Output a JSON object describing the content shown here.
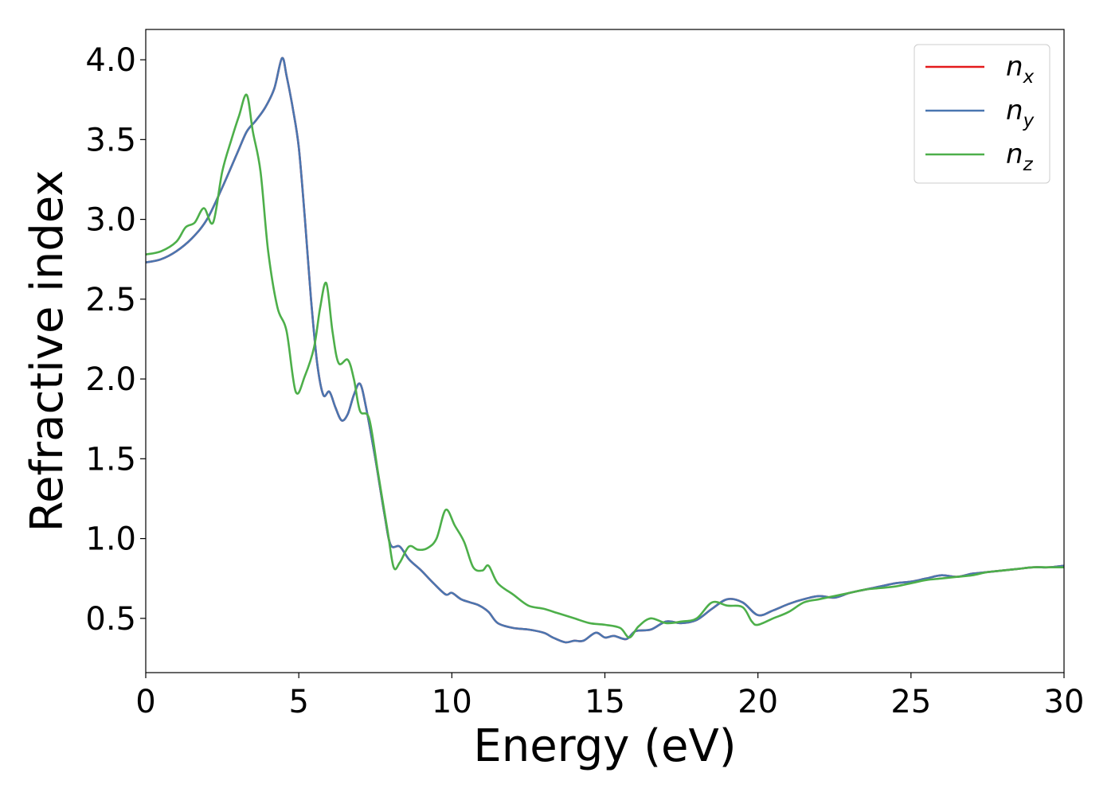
{
  "chart_data": {
    "type": "line",
    "title": "",
    "xlabel": "Energy (eV)",
    "ylabel": "Refractive index",
    "xlim": [
      0,
      30
    ],
    "ylim": [
      0.16,
      4.19
    ],
    "xticks": [
      0,
      5,
      10,
      15,
      20,
      25,
      30
    ],
    "yticks": [
      0.5,
      1.0,
      1.5,
      2.0,
      2.5,
      3.0,
      3.5,
      4.0
    ],
    "xtick_labels": [
      "0",
      "5",
      "10",
      "15",
      "20",
      "25",
      "30"
    ],
    "ytick_labels": [
      "0.5",
      "1.0",
      "1.5",
      "2.0",
      "2.5",
      "3.0",
      "3.5",
      "4.0"
    ],
    "grid": false,
    "legend_position": "top-right",
    "series": [
      {
        "name": "n_x",
        "label_base": "n",
        "label_sub": "x",
        "color": "#e41a1c",
        "x": [
          0,
          0.5,
          1.0,
          1.5,
          2.0,
          2.5,
          3.0,
          3.3,
          3.6,
          3.9,
          4.2,
          4.45,
          4.6,
          4.8,
          5.0,
          5.2,
          5.4,
          5.6,
          5.8,
          6.0,
          6.2,
          6.4,
          6.6,
          6.8,
          7.0,
          7.2,
          7.5,
          7.8,
          8.0,
          8.3,
          8.6,
          9.0,
          9.4,
          9.8,
          10.0,
          10.3,
          10.6,
          10.9,
          11.2,
          11.5,
          12.0,
          12.5,
          13.0,
          13.3,
          13.7,
          14.0,
          14.3,
          14.7,
          15.0,
          15.3,
          15.7,
          16.0,
          16.5,
          17.0,
          17.5,
          18.0,
          18.5,
          19.0,
          19.5,
          20.0,
          20.5,
          21.0,
          21.5,
          22.0,
          22.5,
          23.0,
          23.5,
          24.0,
          24.5,
          25.0,
          25.5,
          26.0,
          26.5,
          27.0,
          27.5,
          28.0,
          28.5,
          29.0,
          29.5,
          30.0
        ],
        "y": [
          2.73,
          2.75,
          2.8,
          2.88,
          3.0,
          3.2,
          3.42,
          3.55,
          3.62,
          3.7,
          3.82,
          4.01,
          3.9,
          3.7,
          3.45,
          3.0,
          2.5,
          2.1,
          1.9,
          1.92,
          1.82,
          1.74,
          1.78,
          1.9,
          1.97,
          1.82,
          1.5,
          1.15,
          0.96,
          0.95,
          0.87,
          0.8,
          0.72,
          0.65,
          0.66,
          0.62,
          0.6,
          0.58,
          0.54,
          0.47,
          0.44,
          0.43,
          0.41,
          0.38,
          0.35,
          0.36,
          0.36,
          0.41,
          0.38,
          0.39,
          0.37,
          0.42,
          0.43,
          0.48,
          0.47,
          0.49,
          0.56,
          0.62,
          0.6,
          0.52,
          0.55,
          0.59,
          0.62,
          0.64,
          0.63,
          0.66,
          0.68,
          0.7,
          0.72,
          0.73,
          0.75,
          0.77,
          0.76,
          0.78,
          0.79,
          0.8,
          0.81,
          0.82,
          0.82,
          0.83
        ]
      },
      {
        "name": "n_y",
        "label_base": "n",
        "label_sub": "y",
        "color": "#4a76b0",
        "x": [
          0,
          0.5,
          1.0,
          1.5,
          2.0,
          2.5,
          3.0,
          3.3,
          3.6,
          3.9,
          4.2,
          4.45,
          4.6,
          4.8,
          5.0,
          5.2,
          5.4,
          5.6,
          5.8,
          6.0,
          6.2,
          6.4,
          6.6,
          6.8,
          7.0,
          7.2,
          7.5,
          7.8,
          8.0,
          8.3,
          8.6,
          9.0,
          9.4,
          9.8,
          10.0,
          10.3,
          10.6,
          10.9,
          11.2,
          11.5,
          12.0,
          12.5,
          13.0,
          13.3,
          13.7,
          14.0,
          14.3,
          14.7,
          15.0,
          15.3,
          15.7,
          16.0,
          16.5,
          17.0,
          17.5,
          18.0,
          18.5,
          19.0,
          19.5,
          20.0,
          20.5,
          21.0,
          21.5,
          22.0,
          22.5,
          23.0,
          23.5,
          24.0,
          24.5,
          25.0,
          25.5,
          26.0,
          26.5,
          27.0,
          27.5,
          28.0,
          28.5,
          29.0,
          29.5,
          30.0
        ],
        "y": [
          2.73,
          2.75,
          2.8,
          2.88,
          3.0,
          3.2,
          3.42,
          3.55,
          3.62,
          3.7,
          3.82,
          4.01,
          3.9,
          3.7,
          3.45,
          3.0,
          2.5,
          2.1,
          1.9,
          1.92,
          1.82,
          1.74,
          1.78,
          1.9,
          1.97,
          1.82,
          1.5,
          1.15,
          0.96,
          0.95,
          0.87,
          0.8,
          0.72,
          0.65,
          0.66,
          0.62,
          0.6,
          0.58,
          0.54,
          0.47,
          0.44,
          0.43,
          0.41,
          0.38,
          0.35,
          0.36,
          0.36,
          0.41,
          0.38,
          0.39,
          0.37,
          0.42,
          0.43,
          0.48,
          0.47,
          0.49,
          0.56,
          0.62,
          0.6,
          0.52,
          0.55,
          0.59,
          0.62,
          0.64,
          0.63,
          0.66,
          0.68,
          0.7,
          0.72,
          0.73,
          0.75,
          0.77,
          0.76,
          0.78,
          0.79,
          0.8,
          0.81,
          0.82,
          0.82,
          0.83
        ]
      },
      {
        "name": "n_z",
        "label_base": "n",
        "label_sub": "z",
        "color": "#4daf4a",
        "x": [
          0,
          0.5,
          1.0,
          1.3,
          1.6,
          1.9,
          2.2,
          2.5,
          2.8,
          3.05,
          3.3,
          3.5,
          3.75,
          4.0,
          4.3,
          4.6,
          4.9,
          5.2,
          5.5,
          5.7,
          5.9,
          6.1,
          6.3,
          6.6,
          6.8,
          7.0,
          7.3,
          7.6,
          7.9,
          8.1,
          8.3,
          8.6,
          8.9,
          9.2,
          9.5,
          9.8,
          10.1,
          10.4,
          10.7,
          11.0,
          11.2,
          11.5,
          12.0,
          12.5,
          13.0,
          13.5,
          14.0,
          14.5,
          15.0,
          15.5,
          15.8,
          16.1,
          16.5,
          17.0,
          17.5,
          18.0,
          18.5,
          19.0,
          19.5,
          19.8,
          20.0,
          20.5,
          21.0,
          21.5,
          22.0,
          22.5,
          23.0,
          23.5,
          24.0,
          24.5,
          25.0,
          25.5,
          26.0,
          26.5,
          27.0,
          27.5,
          28.0,
          28.5,
          29.0,
          29.5,
          30.0
        ],
        "y": [
          2.78,
          2.8,
          2.86,
          2.95,
          2.98,
          3.07,
          2.98,
          3.3,
          3.5,
          3.65,
          3.78,
          3.55,
          3.3,
          2.8,
          2.45,
          2.3,
          1.92,
          2.02,
          2.2,
          2.45,
          2.6,
          2.3,
          2.1,
          2.12,
          2.0,
          1.8,
          1.75,
          1.4,
          1.05,
          0.82,
          0.85,
          0.95,
          0.93,
          0.94,
          1.0,
          1.18,
          1.08,
          0.98,
          0.82,
          0.8,
          0.83,
          0.72,
          0.65,
          0.58,
          0.56,
          0.53,
          0.5,
          0.47,
          0.46,
          0.44,
          0.38,
          0.45,
          0.5,
          0.47,
          0.48,
          0.5,
          0.6,
          0.58,
          0.57,
          0.48,
          0.46,
          0.5,
          0.54,
          0.6,
          0.62,
          0.64,
          0.66,
          0.68,
          0.69,
          0.7,
          0.72,
          0.74,
          0.75,
          0.76,
          0.77,
          0.79,
          0.8,
          0.81,
          0.82,
          0.82,
          0.82
        ]
      }
    ]
  }
}
